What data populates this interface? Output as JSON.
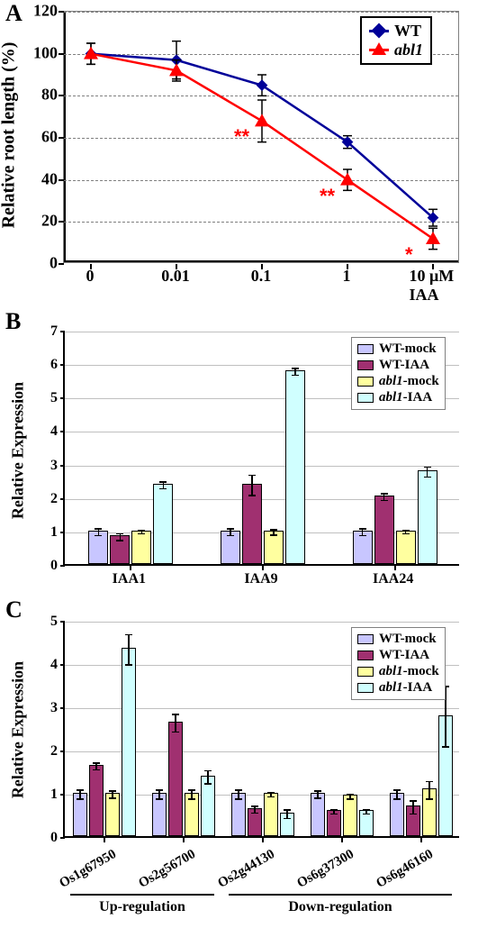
{
  "panelA": {
    "label": "A",
    "type": "line",
    "y_title": "Relative root length (%)",
    "x_unit_label": "10 μM IAA",
    "x_ticks": [
      "0",
      "0.01",
      "0.1",
      "1",
      "10 μM IAA"
    ],
    "y_ticks": [
      0,
      20,
      40,
      60,
      80,
      100,
      120
    ],
    "ylim": [
      0,
      120
    ],
    "series": [
      {
        "name": "WT",
        "label": "WT",
        "color": "#000099",
        "marker": "diamond",
        "y": [
          100,
          97,
          85,
          58,
          22
        ],
        "err": [
          5,
          9,
          5,
          3,
          4
        ]
      },
      {
        "name": "abl1",
        "label": "abl1",
        "italic": true,
        "color": "#ff0000",
        "marker": "triangle",
        "y": [
          100,
          92,
          68,
          40,
          12
        ],
        "err": [
          5,
          5,
          10,
          5,
          5
        ]
      }
    ],
    "significance": [
      {
        "x_index": 2,
        "text": "**"
      },
      {
        "x_index": 3,
        "text": "**"
      },
      {
        "x_index": 4,
        "text": "*"
      }
    ],
    "line_width": 2.5,
    "marker_size": 10,
    "grid_color": "#808080"
  },
  "panelB": {
    "label": "B",
    "type": "bar",
    "y_title": "Relative Expression",
    "y_ticks": [
      0,
      1,
      2,
      3,
      4,
      5,
      6,
      7
    ],
    "ylim": [
      0,
      7
    ],
    "categories": [
      "IAA1",
      "IAA9",
      "IAA24"
    ],
    "conditions": [
      {
        "key": "WT-mock",
        "label": "WT-mock",
        "color": "#c8c6ff"
      },
      {
        "key": "WT-IAA",
        "label": "WT-IAA",
        "color": "#a03070"
      },
      {
        "key": "abl1-mock",
        "label_html": "<span class=\"it\">abl1</span>-mock",
        "color": "#ffff9f"
      },
      {
        "key": "abl1-IAA",
        "label_html": "<span class=\"it\">abl1</span>-IAA",
        "color": "#d0ffff"
      }
    ],
    "values": [
      [
        1.0,
        0.85,
        1.0,
        2.4
      ],
      [
        1.0,
        2.4,
        1.0,
        5.8
      ],
      [
        1.0,
        2.05,
        1.0,
        2.8
      ]
    ],
    "errors": [
      [
        0.1,
        0.1,
        0.05,
        0.1
      ],
      [
        0.1,
        0.3,
        0.08,
        0.1
      ],
      [
        0.1,
        0.1,
        0.05,
        0.15
      ]
    ]
  },
  "panelC": {
    "label": "C",
    "type": "bar",
    "y_title": "Relative Expression",
    "y_ticks": [
      0,
      1,
      2,
      3,
      4,
      5
    ],
    "ylim": [
      0,
      5
    ],
    "categories": [
      "Os1g67950",
      "Os2g56700",
      "Os2g44130",
      "Os6g37300",
      "Os6g46160"
    ],
    "conditions": [
      {
        "key": "WT-mock",
        "label": "WT-mock",
        "color": "#c8c6ff"
      },
      {
        "key": "WT-IAA",
        "label": "WT-IAA",
        "color": "#a03070"
      },
      {
        "key": "abl1-mock",
        "label_html": "<span class=\"it\">abl1</span>-mock",
        "color": "#ffff9f"
      },
      {
        "key": "abl1-IAA",
        "label_html": "<span class=\"it\">abl1</span>-IAA",
        "color": "#d0ffff"
      }
    ],
    "values": [
      [
        1.0,
        1.65,
        1.0,
        4.35
      ],
      [
        1.0,
        2.65,
        1.0,
        1.4
      ],
      [
        1.0,
        0.65,
        1.0,
        0.55
      ],
      [
        1.0,
        0.6,
        0.95,
        0.6
      ],
      [
        1.0,
        0.7,
        1.1,
        2.8
      ]
    ],
    "errors": [
      [
        0.1,
        0.08,
        0.08,
        0.35
      ],
      [
        0.1,
        0.2,
        0.1,
        0.15
      ],
      [
        0.1,
        0.08,
        0.05,
        0.1
      ],
      [
        0.08,
        0.05,
        0.05,
        0.05
      ],
      [
        0.1,
        0.15,
        0.2,
        0.7
      ]
    ],
    "groups": [
      {
        "label": "Up-regulation",
        "from": 0,
        "to": 1
      },
      {
        "label": "Down-regulation",
        "from": 2,
        "to": 4
      }
    ]
  },
  "colors": {
    "background": "#ffffff",
    "axis": "#000000"
  }
}
